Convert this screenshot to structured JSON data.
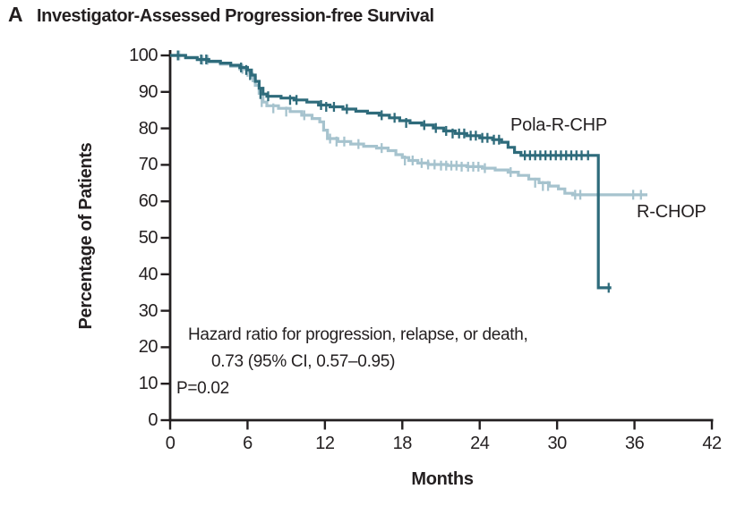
{
  "figure": {
    "panel_label": "A",
    "title": "Investigator-Assessed Progression-free Survival"
  },
  "chart_data": {
    "type": "line",
    "subtype": "kaplan-meier-step",
    "title": "Investigator-Assessed Progression-free Survival",
    "xlabel": "Months",
    "ylabel": "Percentage of Patients",
    "xlim": [
      0,
      42
    ],
    "ylim": [
      0,
      100
    ],
    "xticks": [
      0,
      6,
      12,
      18,
      24,
      30,
      36,
      42
    ],
    "yticks": [
      0,
      10,
      20,
      30,
      40,
      50,
      60,
      70,
      80,
      90,
      100
    ],
    "grid": false,
    "legend_position": "inline-labels",
    "ink_color": "#231f20",
    "annotation": {
      "line1": "Hazard ratio for progression, relapse, or death,",
      "line2": "0.73 (95% CI, 0.57–0.95)",
      "line3": "P=0.02"
    },
    "series": [
      {
        "name": "Pola-R-CHP",
        "color": "#2e6b7b",
        "steps": [
          [
            0,
            100
          ],
          [
            1.2,
            99.4
          ],
          [
            2.1,
            98.9
          ],
          [
            3.0,
            98.4
          ],
          [
            3.9,
            97.9
          ],
          [
            4.7,
            97.3
          ],
          [
            5.4,
            96.7
          ],
          [
            6.0,
            96.0
          ],
          [
            6.3,
            94.6
          ],
          [
            6.6,
            92.9
          ],
          [
            6.9,
            91.0
          ],
          [
            7.2,
            89.4
          ],
          [
            7.5,
            88.8
          ],
          [
            8.6,
            88.3
          ],
          [
            9.6,
            87.8
          ],
          [
            10.6,
            87.2
          ],
          [
            11.5,
            86.4
          ],
          [
            12.4,
            85.9
          ],
          [
            13.4,
            85.3
          ],
          [
            14.4,
            84.7
          ],
          [
            15.3,
            84.2
          ],
          [
            16.2,
            83.6
          ],
          [
            17.0,
            82.9
          ],
          [
            17.8,
            82.1
          ],
          [
            18.6,
            81.5
          ],
          [
            19.5,
            80.9
          ],
          [
            20.4,
            80.1
          ],
          [
            21.2,
            79.3
          ],
          [
            22.1,
            78.6
          ],
          [
            23.0,
            78.0
          ],
          [
            24.0,
            77.4
          ],
          [
            25.0,
            76.9
          ],
          [
            25.7,
            76.2
          ],
          [
            26.2,
            74.8
          ],
          [
            26.7,
            73.4
          ],
          [
            27.2,
            72.6
          ],
          [
            33.2,
            72.6
          ],
          [
            33.2,
            36.3
          ],
          [
            34.2,
            36.3
          ]
        ],
        "censor_marks": [
          [
            0.6,
            100
          ],
          [
            2.4,
            98.9
          ],
          [
            2.8,
            98.9
          ],
          [
            5.5,
            96.7
          ],
          [
            5.9,
            96.0
          ],
          [
            6.2,
            94.6
          ],
          [
            7.0,
            89.4
          ],
          [
            7.6,
            88.8
          ],
          [
            9.3,
            87.8
          ],
          [
            9.8,
            87.8
          ],
          [
            11.7,
            86.4
          ],
          [
            12.1,
            85.9
          ],
          [
            12.7,
            85.9
          ],
          [
            13.7,
            85.3
          ],
          [
            16.4,
            83.6
          ],
          [
            17.4,
            82.9
          ],
          [
            18.3,
            81.5
          ],
          [
            19.7,
            80.9
          ],
          [
            20.6,
            80.1
          ],
          [
            21.4,
            79.3
          ],
          [
            21.9,
            78.6
          ],
          [
            22.4,
            78.6
          ],
          [
            22.8,
            78.6
          ],
          [
            23.3,
            78.0
          ],
          [
            23.7,
            78.0
          ],
          [
            24.2,
            77.4
          ],
          [
            24.6,
            77.4
          ],
          [
            25.1,
            76.9
          ],
          [
            25.5,
            76.9
          ],
          [
            27.5,
            72.6
          ],
          [
            27.9,
            72.6
          ],
          [
            28.3,
            72.6
          ],
          [
            28.7,
            72.6
          ],
          [
            29.1,
            72.6
          ],
          [
            29.5,
            72.6
          ],
          [
            29.9,
            72.6
          ],
          [
            30.3,
            72.6
          ],
          [
            30.7,
            72.6
          ],
          [
            31.1,
            72.6
          ],
          [
            31.5,
            72.6
          ],
          [
            31.9,
            72.6
          ],
          [
            32.4,
            72.6
          ],
          [
            34.0,
            36.3
          ]
        ]
      },
      {
        "name": "R-CHOP",
        "color": "#a6c3ce",
        "steps": [
          [
            0,
            100
          ],
          [
            1.2,
            99.3
          ],
          [
            2.1,
            98.8
          ],
          [
            3.0,
            98.2
          ],
          [
            3.9,
            97.6
          ],
          [
            4.7,
            97.0
          ],
          [
            5.4,
            96.3
          ],
          [
            6.0,
            95.5
          ],
          [
            6.3,
            94.0
          ],
          [
            6.6,
            91.8
          ],
          [
            6.9,
            89.6
          ],
          [
            7.2,
            87.2
          ],
          [
            7.5,
            86.2
          ],
          [
            8.4,
            85.5
          ],
          [
            9.3,
            84.6
          ],
          [
            10.2,
            83.6
          ],
          [
            11.0,
            82.7
          ],
          [
            11.6,
            81.8
          ],
          [
            11.9,
            79.5
          ],
          [
            12.2,
            77.2
          ],
          [
            13.0,
            76.4
          ],
          [
            14.0,
            75.7
          ],
          [
            15.0,
            75.1
          ],
          [
            16.0,
            74.6
          ],
          [
            16.9,
            73.9
          ],
          [
            17.5,
            72.8
          ],
          [
            18.0,
            72.0
          ],
          [
            18.5,
            71.2
          ],
          [
            19.2,
            70.5
          ],
          [
            20.0,
            70.1
          ],
          [
            21.5,
            69.8
          ],
          [
            23.0,
            69.5
          ],
          [
            24.2,
            69.1
          ],
          [
            25.2,
            68.6
          ],
          [
            26.2,
            68.0
          ],
          [
            27.0,
            67.1
          ],
          [
            27.8,
            66.1
          ],
          [
            28.6,
            65.1
          ],
          [
            29.4,
            64.2
          ],
          [
            30.1,
            63.4
          ],
          [
            30.6,
            62.2
          ],
          [
            31.2,
            61.8
          ],
          [
            37.0,
            61.8
          ]
        ],
        "censor_marks": [
          [
            0.7,
            100
          ],
          [
            2.5,
            98.8
          ],
          [
            2.9,
            98.8
          ],
          [
            5.6,
            96.3
          ],
          [
            6.0,
            95.5
          ],
          [
            6.4,
            94.0
          ],
          [
            7.1,
            87.2
          ],
          [
            8.0,
            85.5
          ],
          [
            9.0,
            84.6
          ],
          [
            10.4,
            83.6
          ],
          [
            12.4,
            77.2
          ],
          [
            12.9,
            76.4
          ],
          [
            13.5,
            76.4
          ],
          [
            14.6,
            75.7
          ],
          [
            16.4,
            74.6
          ],
          [
            18.2,
            71.2
          ],
          [
            18.8,
            71.2
          ],
          [
            19.5,
            70.5
          ],
          [
            20.0,
            70.1
          ],
          [
            20.5,
            70.1
          ],
          [
            21.0,
            69.8
          ],
          [
            21.4,
            69.8
          ],
          [
            21.8,
            69.8
          ],
          [
            22.2,
            69.8
          ],
          [
            22.6,
            69.5
          ],
          [
            23.1,
            69.5
          ],
          [
            23.5,
            69.5
          ],
          [
            23.9,
            69.5
          ],
          [
            24.4,
            69.1
          ],
          [
            26.4,
            68.0
          ],
          [
            28.3,
            65.1
          ],
          [
            28.9,
            64.2
          ],
          [
            29.3,
            64.2
          ],
          [
            31.4,
            61.8
          ],
          [
            31.8,
            61.8
          ],
          [
            35.9,
            61.8
          ],
          [
            36.5,
            61.8
          ]
        ]
      }
    ]
  }
}
